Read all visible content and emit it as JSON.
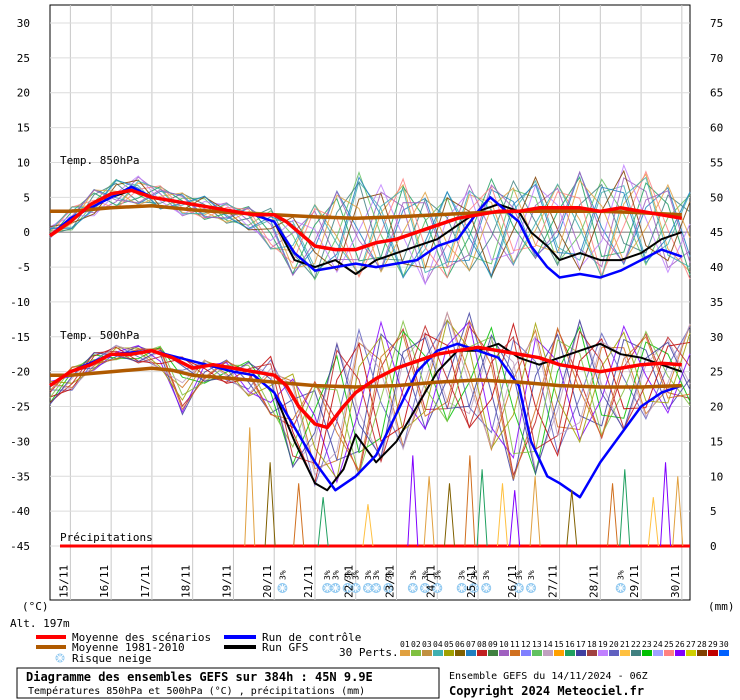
{
  "chart_data": {
    "type": "line",
    "title": "Diagramme des ensembles GEFS sur 384h : 45N 9.9E",
    "subtitle": "Températures 850hPa et 500hPa (°C) , précipitations (mm)",
    "run_info": "Ensemble GEFS du 14/11/2024 - 06Z",
    "copyright": "Copyright 2024 Meteociel.fr",
    "altitude": "Alt. 197m",
    "left_unit": "(°C)",
    "right_unit": "(mm)",
    "left_axis": {
      "ticks": [
        "30",
        "25",
        "20",
        "15",
        "10",
        "5",
        "0",
        "-5",
        "-10",
        "-15",
        "-20",
        "-25",
        "-30",
        "-35",
        "-40",
        "-45"
      ],
      "ylim": [
        -45,
        30
      ]
    },
    "right_axis": {
      "ticks": [
        "75",
        "70",
        "65",
        "60",
        "55",
        "50",
        "45",
        "40",
        "35",
        "30",
        "25",
        "20",
        "15",
        "10",
        "5",
        "0"
      ],
      "ylim": [
        0,
        75
      ]
    },
    "x_labels": [
      "15/11",
      "16/11",
      "17/11",
      "18/11",
      "19/11",
      "20/11",
      "21/11",
      "22/11",
      "23/11",
      "24/11",
      "25/11",
      "26/11",
      "27/11",
      "28/11",
      "29/11",
      "30/11"
    ],
    "panel_labels": {
      "t850": "Temp. 850hPa",
      "t500": "Temp. 500hPa",
      "precip": "Précipitations"
    },
    "legend": [
      {
        "label": "Moyenne des scénarios",
        "color": "#ff0000"
      },
      {
        "label": "Moyenne 1981-2010",
        "color": "#b05a00"
      },
      {
        "label": "Run de contrôle",
        "color": "#0000ff"
      },
      {
        "label": "Run GFS",
        "color": "#000000"
      },
      {
        "label": "Risque neige",
        "color": "#8fc8f0"
      }
    ],
    "perts_label": "30 Perts.",
    "perts": [
      "01",
      "02",
      "03",
      "04",
      "05",
      "06",
      "07",
      "08",
      "09",
      "10",
      "11",
      "12",
      "13",
      "14",
      "15",
      "16",
      "17",
      "18",
      "19",
      "20",
      "21",
      "22",
      "23",
      "24",
      "25",
      "26",
      "27",
      "28",
      "29",
      "30"
    ],
    "pert_colors": [
      "#e0a040",
      "#80c040",
      "#c09040",
      "#40b0b0",
      "#a0a000",
      "#806000",
      "#2080c0",
      "#c02020",
      "#408040",
      "#a060c0",
      "#d07020",
      "#8080ff",
      "#60c060",
      "#c0a0c0",
      "#ffa000",
      "#20a060",
      "#4040a0",
      "#a04040",
      "#c080ff",
      "#6060c0",
      "#ffc040",
      "#408080",
      "#00c000",
      "#a0a0ff",
      "#ff8080",
      "#8000ff",
      "#d0d000",
      "#804000",
      "#c00000",
      "#0060ff"
    ],
    "snow_label": "3%",
    "snow_days": [
      20.2,
      21.3,
      21.5,
      21.8,
      22.0,
      22.3,
      22.5,
      22.8,
      23.4,
      23.7,
      24.0,
      24.6,
      24.9,
      25.2,
      26.0,
      26.3,
      28.5
    ],
    "series": [
      {
        "name": "Moyenne des scénarios",
        "panel": "t850",
        "x": [
          14.5,
          15,
          15.5,
          16,
          16.5,
          17,
          17.5,
          18,
          18.5,
          19,
          19.5,
          20,
          20.3,
          20.6,
          21,
          21.5,
          22,
          22.5,
          23,
          23.5,
          24,
          24.5,
          25,
          25.5,
          26,
          26.5,
          27,
          27.5,
          28,
          28.5,
          29,
          29.5,
          30
        ],
        "values": [
          -0.5,
          1.5,
          4,
          5.5,
          6,
          5,
          4.5,
          4,
          3.5,
          3,
          2.5,
          2.5,
          1.5,
          0,
          -2,
          -2.5,
          -2.5,
          -1.5,
          -1,
          0,
          1,
          2,
          2.5,
          3,
          3,
          3.5,
          3.5,
          3.5,
          3,
          3.5,
          3,
          2.5,
          2
        ]
      },
      {
        "name": "Moyenne 1981-2010",
        "panel": "t850",
        "x": [
          14.5,
          15,
          16,
          17,
          18,
          19,
          20,
          21,
          22,
          23,
          24,
          25,
          26,
          27,
          28,
          29,
          30
        ],
        "values": [
          3,
          3,
          3.5,
          3.8,
          3.2,
          2.8,
          2.5,
          2.2,
          2,
          2.2,
          2.5,
          2.8,
          3,
          3,
          3,
          2.8,
          2.5
        ]
      },
      {
        "name": "Run de contrôle",
        "panel": "t850",
        "x": [
          14.5,
          15,
          16,
          16.5,
          17,
          18,
          19,
          19.5,
          20,
          20.5,
          20.8,
          21,
          21.5,
          22,
          22.5,
          23,
          23.5,
          24,
          24.5,
          25,
          25.3,
          25.7,
          26,
          26.3,
          26.7,
          27,
          27.5,
          28,
          28.5,
          29,
          29.5,
          30
        ],
        "values": [
          -0.5,
          2,
          5,
          6.5,
          5,
          4,
          3,
          2.5,
          1.5,
          -3,
          -4.5,
          -5.5,
          -5,
          -4.5,
          -5,
          -4.5,
          -4,
          -2,
          -1,
          3,
          5,
          3,
          1.5,
          -2,
          -5,
          -6.5,
          -6,
          -6.5,
          -5.5,
          -4,
          -2.5,
          -3.5
        ]
      },
      {
        "name": "Run GFS",
        "panel": "t850",
        "x": [
          14.5,
          15,
          16,
          16.5,
          17,
          18,
          19,
          19.5,
          20,
          20.5,
          21,
          21.5,
          22,
          22.5,
          23,
          23.5,
          24,
          24.5,
          25,
          25.5,
          26,
          26.3,
          26.7,
          27,
          27.5,
          28,
          28.5,
          29,
          29.5,
          30
        ],
        "values": [
          -0.5,
          2,
          5,
          6,
          5,
          4,
          3,
          2.5,
          1.5,
          -4,
          -5,
          -4,
          -6,
          -4,
          -3,
          -2,
          -1,
          1,
          3,
          4,
          3,
          0,
          -2,
          -4,
          -3,
          -4,
          -4,
          -3,
          -1,
          0
        ]
      },
      {
        "name": "Moyenne des scénarios",
        "panel": "t500",
        "x": [
          14.5,
          15,
          15.5,
          16,
          16.5,
          17,
          17.5,
          18,
          18.5,
          19,
          19.5,
          20,
          20.3,
          20.6,
          21,
          21.3,
          21.7,
          22,
          22.5,
          23,
          23.5,
          24,
          24.5,
          25,
          25.5,
          26,
          26.5,
          27,
          27.5,
          28,
          28.5,
          29,
          29.5,
          30
        ],
        "values": [
          -22,
          -20,
          -19,
          -17.5,
          -17.5,
          -17,
          -18,
          -19.5,
          -19,
          -19.5,
          -20,
          -20.5,
          -22,
          -25,
          -27.5,
          -28,
          -25,
          -23,
          -21,
          -19.5,
          -18.5,
          -17.5,
          -17,
          -16.5,
          -17,
          -17.5,
          -18,
          -19,
          -19.5,
          -20,
          -19.5,
          -19,
          -18.8,
          -19
        ]
      },
      {
        "name": "Moyenne 1981-2010",
        "panel": "t500",
        "x": [
          14.5,
          15,
          16,
          17,
          17.5,
          18,
          19,
          20,
          21,
          22,
          23,
          24,
          25,
          26,
          27,
          28,
          29,
          30
        ],
        "values": [
          -20.5,
          -20.5,
          -20,
          -19.5,
          -19.8,
          -20.5,
          -21,
          -21.5,
          -22,
          -22.2,
          -22,
          -21.5,
          -21.2,
          -21.5,
          -22,
          -22.2,
          -22.2,
          -22
        ]
      },
      {
        "name": "Run de contrôle",
        "panel": "t500",
        "x": [
          14.5,
          15,
          16,
          17,
          18,
          19,
          19.5,
          20,
          20.5,
          21,
          21.5,
          22,
          22.5,
          23,
          23.5,
          24,
          24.5,
          25,
          25.5,
          26,
          26.3,
          26.7,
          27,
          27.5,
          28,
          28.5,
          29,
          29.5,
          30
        ],
        "values": [
          -22,
          -20,
          -17.5,
          -17,
          -18.5,
          -20,
          -20.5,
          -23,
          -28,
          -33,
          -37,
          -35,
          -32,
          -26,
          -20,
          -17,
          -16,
          -17,
          -18,
          -22,
          -30,
          -35,
          -36,
          -38,
          -33,
          -29,
          -25,
          -23,
          -22
        ]
      },
      {
        "name": "Run GFS",
        "panel": "t500",
        "x": [
          14.5,
          15,
          16,
          17,
          18,
          19,
          19.5,
          20,
          20.5,
          21,
          21.3,
          21.7,
          22,
          22.5,
          23,
          23.5,
          24,
          24.5,
          25,
          25.5,
          26,
          26.5,
          27,
          27.5,
          28,
          28.5,
          29,
          29.5,
          30
        ],
        "values": [
          -22,
          -20,
          -17.5,
          -17,
          -18.5,
          -20,
          -20.5,
          -23,
          -30,
          -36,
          -37,
          -34,
          -29,
          -33,
          -30,
          -25,
          -20,
          -17,
          -17,
          -16,
          -18,
          -19,
          -18,
          -17,
          -16,
          -17.5,
          -18,
          -19,
          -20
        ]
      }
    ],
    "ensemble_envelope": {
      "t850_upper": [
        1,
        4,
        6.5,
        8,
        8.5,
        7,
        6,
        5.5,
        4.5,
        4,
        4,
        3,
        5,
        7,
        10,
        8,
        9,
        7,
        7,
        8,
        9,
        8.5,
        9,
        8,
        10,
        9,
        11,
        10,
        8,
        7
      ],
      "t850_lower": [
        -1,
        0,
        2,
        3,
        3.5,
        3,
        2,
        1.5,
        1,
        0,
        -3,
        -7,
        -8,
        -7,
        -8,
        -7,
        -8,
        -9,
        -8,
        -7,
        -8,
        -6,
        -5,
        -6,
        -7,
        -8,
        -6,
        -6,
        -7,
        -8
      ],
      "t500_upper": [
        -21,
        -19,
        -17,
        -16,
        -16,
        -16,
        -17,
        -18,
        -18,
        -18,
        -17,
        -19,
        -20,
        -14,
        -12,
        -11,
        -11,
        -12,
        -10,
        -10,
        -12,
        -11,
        -11,
        -12,
        -11,
        -13,
        -12,
        -13,
        -14,
        -12
      ],
      "t500_lower": [
        -25,
        -23,
        -20,
        -18.5,
        -19,
        -20,
        -27,
        -22,
        -22,
        -24,
        -27,
        -35,
        -38,
        -38,
        -37,
        -35,
        -33,
        -30,
        -29,
        -30,
        -33,
        -38,
        -37,
        -34,
        -32,
        -31,
        -30,
        -28,
        -27,
        -26
      ]
    },
    "precip_spikes": [
      {
        "x": 19.4,
        "mm": 17
      },
      {
        "x": 19.9,
        "mm": 12
      },
      {
        "x": 20.6,
        "mm": 9
      },
      {
        "x": 21.2,
        "mm": 7
      },
      {
        "x": 22.3,
        "mm": 6
      },
      {
        "x": 23.4,
        "mm": 13
      },
      {
        "x": 23.8,
        "mm": 10
      },
      {
        "x": 24.3,
        "mm": 9
      },
      {
        "x": 24.8,
        "mm": 13
      },
      {
        "x": 25.1,
        "mm": 11
      },
      {
        "x": 25.6,
        "mm": 9
      },
      {
        "x": 25.9,
        "mm": 8
      },
      {
        "x": 26.4,
        "mm": 10
      },
      {
        "x": 27.3,
        "mm": 8
      },
      {
        "x": 28.3,
        "mm": 9
      },
      {
        "x": 28.6,
        "mm": 11
      },
      {
        "x": 29.3,
        "mm": 7
      },
      {
        "x": 29.6,
        "mm": 12
      },
      {
        "x": 29.9,
        "mm": 10
      }
    ],
    "grid": true
  }
}
